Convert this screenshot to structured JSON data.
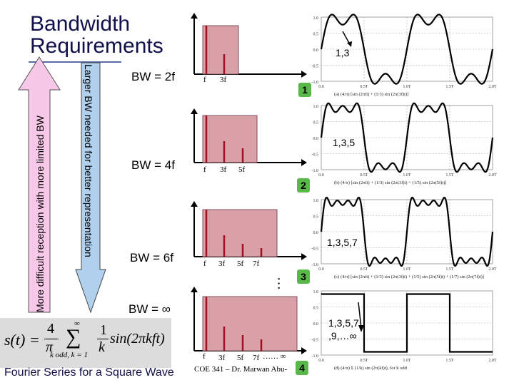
{
  "title": "Bandwidth\nRequirements",
  "left_arrow_label": "More difficult reception with more limited BW",
  "right_arrow_label": "Larger BW needed for better representation",
  "rows": [
    {
      "bw": "BW = 2f",
      "freq_labels": [
        "f",
        "3f"
      ],
      "harmonics": "1,3",
      "badge": "1"
    },
    {
      "bw": "BW = 4f",
      "freq_labels": [
        "f",
        "3f",
        "5f"
      ],
      "harmonics": "1,3,5",
      "badge": "2"
    },
    {
      "bw": "BW = 6f",
      "freq_labels": [
        "f",
        "3f",
        "5f",
        "7f"
      ],
      "harmonics": "1,3,5,7",
      "badge": "3"
    },
    {
      "bw": "BW = ∞",
      "freq_labels": [
        "f",
        "3f",
        "5f",
        "7f",
        "…… ∞"
      ],
      "harmonics": "1,3,5,7\n,9,…∞",
      "badge": "4"
    }
  ],
  "ellipsis": "…",
  "plot_ticks": {
    "y": [
      "1.0",
      "0.5",
      "0.0",
      "-0.5",
      "-1.0"
    ],
    "x": [
      "0.0",
      "0.5T",
      "1.0T",
      "1.5T",
      "2.0T"
    ]
  },
  "captions": [
    "(a) (4/π) [sin (2πft) + (1/3) sin (2π(3f)t)]",
    "(b) (4/π) [sin (2πft) + (1/3) sin (2π(3f)t) + (1/5) sin (2π(5f)t)]",
    "(c) (4/π) [sin (2πft) + (1/3) sin (2π(3f)t) + (1/5) sin (2π(5f)t) + (1/7) sin (2π(7f)t)]",
    "(d) (4/π) Σ (1/k) sin (2π(kf)t),    for k odd"
  ],
  "formula": {
    "lhs": "s(t) =",
    "coef_num": "4",
    "coef_den": "π",
    "sum_top": "∞",
    "sum_bottom": "k odd, k = 1",
    "frac_num": "1",
    "frac_den": "k",
    "func": "sin(2πkft)"
  },
  "footer": "Fourier Series for a Square Wave",
  "copyright": "COE 341 – Dr. Marwan Abu-"
}
